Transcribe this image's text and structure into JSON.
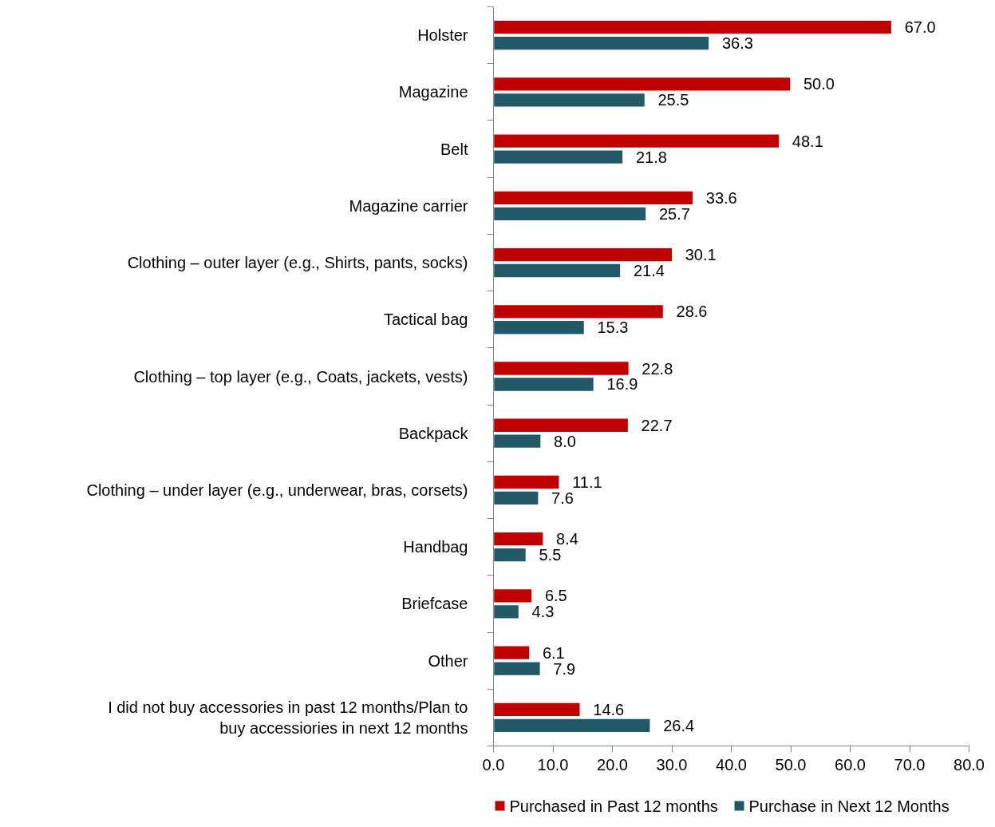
{
  "chart_data": {
    "type": "bar",
    "orientation": "horizontal",
    "categories": [
      "Holster",
      "Magazine",
      "Belt",
      "Magazine carrier",
      "Clothing – outer layer (e.g., Shirts, pants, socks)",
      "Tactical bag",
      "Clothing – top layer (e.g., Coats, jackets, vests)",
      "Backpack",
      "Clothing – under layer (e.g., underwear, bras, corsets)",
      "Handbag",
      "Briefcase",
      "Other",
      "I did not buy accessories in past 12 months/Plan to\nbuy accessiories in next 12 months"
    ],
    "series": [
      {
        "name": "Purchased in Past 12 months",
        "color": "#c00000",
        "values": [
          67.0,
          50.0,
          48.1,
          33.6,
          30.1,
          28.6,
          22.8,
          22.7,
          11.1,
          8.4,
          6.5,
          6.1,
          14.6
        ],
        "value_labels": [
          "67.0",
          "50.0",
          "48.1",
          "33.6",
          "30.1",
          "28.6",
          "22.8",
          "22.7",
          "11.1",
          "8.4",
          "6.5",
          "6.1",
          "14.6"
        ]
      },
      {
        "name": "Purchase in Next 12 Months",
        "color": "#215968",
        "values": [
          36.3,
          25.5,
          21.8,
          25.7,
          21.4,
          15.3,
          16.9,
          8.0,
          7.6,
          5.5,
          4.3,
          7.9,
          26.4
        ],
        "value_labels": [
          "36.3",
          "25.5",
          "21.8",
          "25.7",
          "21.4",
          "15.3",
          "16.9",
          "8.0",
          "7.6",
          "5.5",
          "4.3",
          "7.9",
          "26.4"
        ]
      }
    ],
    "xlim": [
      0,
      80
    ],
    "xticks": [
      {
        "value": 0,
        "label": "0.0"
      },
      {
        "value": 10,
        "label": "10.0"
      },
      {
        "value": 20,
        "label": "20.0"
      },
      {
        "value": 30,
        "label": "30.0"
      },
      {
        "value": 40,
        "label": "40.0"
      },
      {
        "value": 50,
        "label": "50.0"
      },
      {
        "value": 60,
        "label": "60.0"
      },
      {
        "value": 70,
        "label": "70.0"
      },
      {
        "value": 80,
        "label": "80.0"
      }
    ],
    "legend": "bottom"
  }
}
